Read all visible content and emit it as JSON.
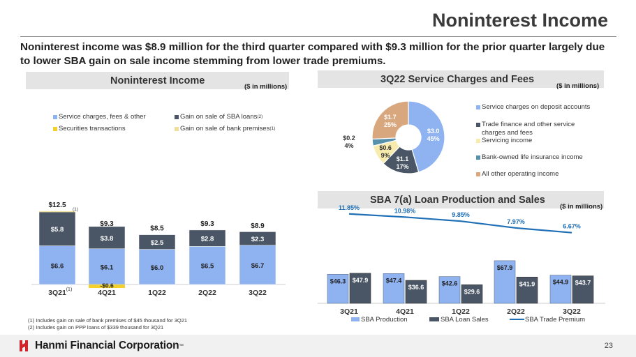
{
  "slide": {
    "title": "Noninterest Income",
    "headline": "Noninterest income was $8.9 million for the third quarter compared with $9.3 million for the prior quarter largely due to lower SBA gain on sale income stemming from lower trade premiums.",
    "page_number": "23",
    "company": "Hanmi Financial Corporation",
    "company_mark": "™"
  },
  "colors": {
    "service": "#8fb2f1",
    "sba_gain": "#4a5665",
    "securities": "#f3d02b",
    "premises": "#f0df9a",
    "deposit": "#8fb2f1",
    "trade": "#4a5665",
    "servicing": "#f7ebad",
    "boli": "#5690ab",
    "other": "#d9a77e",
    "premium_line": "#1f6fb6",
    "logo_red": "#d2232a"
  },
  "left_panel": {
    "title": "Noninterest Income",
    "unit": "($ in millions)",
    "legend": [
      {
        "label": "Service charges, fees & other",
        "sup": ""
      },
      {
        "label": "Gain on sale of SBA loans",
        "sup": "(2)"
      },
      {
        "label": "Securities transactions",
        "sup": ""
      },
      {
        "label": "Gain on sale of bank premises",
        "sup": "(1)"
      }
    ],
    "footnotes": [
      "(1)   Includes gain on sale of bank premises of $45 thousand for 3Q21",
      "(2)   Includes gain on PPP loans of $339 thousand for 3Q21"
    ]
  },
  "right_top": {
    "title": "3Q22 Service Charges and Fees",
    "unit": "($ in millions)",
    "legend": [
      "Service charges on deposit accounts",
      "Trade finance and other service charges and fees",
      "Servicing income",
      "Bank-owned life insurance income",
      "All other operating income"
    ]
  },
  "right_bottom": {
    "title": "SBA 7(a) Loan Production and Sales",
    "unit": "($ in millions)",
    "legend": [
      "SBA Production",
      "SBA Loan Sales",
      "SBA Trade Premium"
    ]
  },
  "chart_data": [
    {
      "type": "bar",
      "stacked": true,
      "title": "Noninterest Income",
      "ylabel": "$ in millions",
      "ylim": [
        0,
        14
      ],
      "categories": [
        "3Q21",
        "4Q21",
        "1Q22",
        "2Q22",
        "3Q22"
      ],
      "category_sup": [
        "(1)",
        "",
        "",
        "",
        ""
      ],
      "series": [
        {
          "name": "Service charges, fees & other",
          "values": [
            6.6,
            6.1,
            6.0,
            6.5,
            6.7
          ],
          "labels": [
            "$6.6",
            "$6.1",
            "$6.0",
            "$6.5",
            "$6.7"
          ]
        },
        {
          "name": "Gain on sale of SBA loans",
          "values": [
            5.8,
            3.8,
            2.5,
            2.8,
            2.3
          ],
          "labels": [
            "$5.8",
            "$3.8",
            "$2.5",
            "$2.8",
            "$2.3"
          ]
        },
        {
          "name": "Securities transactions",
          "values": [
            0,
            -0.6,
            0,
            0,
            0
          ],
          "labels": [
            "",
            "-$0.6",
            "",
            "",
            ""
          ]
        },
        {
          "name": "Gain on sale of bank premises",
          "values": [
            0.045,
            0,
            0,
            0,
            0
          ],
          "labels": [
            "",
            "",
            "",
            "",
            ""
          ]
        }
      ],
      "totals": [
        12.5,
        9.3,
        8.5,
        9.3,
        8.9
      ],
      "total_labels": [
        "$12.5",
        "$9.3",
        "$8.5",
        "$9.3",
        "$8.9"
      ],
      "annotations": [
        "(1)"
      ]
    },
    {
      "type": "pie",
      "donut": true,
      "title": "3Q22 Service Charges and Fees",
      "slices": [
        {
          "name": "Service charges on deposit accounts",
          "value": 3.0,
          "pct": 45,
          "label": "$3.0",
          "pct_label": "45%"
        },
        {
          "name": "Trade finance and other service charges and fees",
          "value": 1.1,
          "pct": 17,
          "label": "$1.1",
          "pct_label": "17%"
        },
        {
          "name": "Servicing income",
          "value": 0.6,
          "pct": 9,
          "label": "$0.6",
          "pct_label": "9%"
        },
        {
          "name": "Bank-owned life insurance income",
          "value": 0.2,
          "pct": 4,
          "label": "$0.2",
          "pct_label": "4%"
        },
        {
          "name": "All other operating income",
          "value": 1.7,
          "pct": 25,
          "label": "$1.7",
          "pct_label": "25%"
        }
      ]
    },
    {
      "type": "bar",
      "title": "SBA 7(a) Loan Production and Sales",
      "ylabel": "$ in millions",
      "ylim": [
        0,
        75
      ],
      "categories": [
        "3Q21",
        "4Q21",
        "1Q22",
        "2Q22",
        "3Q22"
      ],
      "series": [
        {
          "name": "SBA Production",
          "values": [
            46.3,
            47.4,
            42.6,
            67.9,
            44.9
          ],
          "labels": [
            "$46.3",
            "$47.4",
            "$42.6",
            "$67.9",
            "$44.9"
          ]
        },
        {
          "name": "SBA Loan Sales",
          "values": [
            47.9,
            36.6,
            29.6,
            41.9,
            43.7
          ],
          "labels": [
            "$47.9",
            "$36.6",
            "$29.6",
            "$41.9",
            "$43.7"
          ]
        }
      ],
      "line": {
        "name": "SBA Trade Premium",
        "type": "line",
        "values": [
          11.85,
          10.98,
          9.85,
          7.97,
          6.67
        ],
        "labels": [
          "11.85%",
          "10.98%",
          "9.85%",
          "7.97%",
          "6.67%"
        ]
      }
    }
  ]
}
